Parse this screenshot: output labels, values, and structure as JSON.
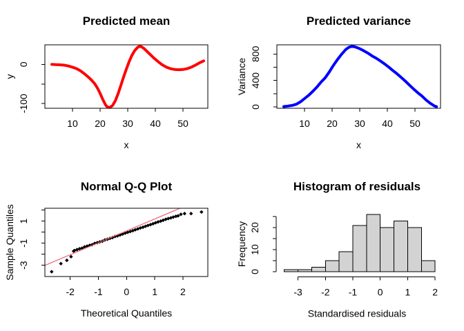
{
  "page": {
    "background": "#FFFFFF"
  },
  "chart_data": [
    {
      "id": "predicted-mean",
      "type": "line",
      "title": "Predicted mean",
      "xlabel": "x",
      "ylabel": "y",
      "xlim": [
        0,
        59
      ],
      "ylim": [
        -112,
        50
      ],
      "grid": false,
      "legend": null,
      "xticks": {
        "values": [
          10,
          20,
          30,
          40,
          50
        ],
        "labels": [
          "10",
          "20",
          "30",
          "40",
          "50"
        ]
      },
      "yticks": {
        "values": [
          0,
          -50,
          -100
        ],
        "labels": [
          "0",
          "",
          "-100"
        ]
      },
      "series": [
        {
          "name": "predicted-mean-curve",
          "color": "#FF0000",
          "width": 4,
          "x": [
            2.5,
            4,
            5.5,
            7,
            8.5,
            10,
            11.5,
            13,
            14.5,
            16,
            17,
            18,
            19,
            20,
            21,
            22,
            22.7,
            23.5,
            24.5,
            25.5,
            26.5,
            27.5,
            28.5,
            29.5,
            30.5,
            31.5,
            32.5,
            33.5,
            34.2,
            35,
            36,
            37,
            38,
            39.5,
            41,
            42.5,
            44,
            45.5,
            47,
            48.5,
            50,
            51.5,
            53,
            54.5,
            56,
            57.5
          ],
          "y": [
            0,
            -0.5,
            -1,
            -2,
            -4,
            -7,
            -11,
            -17,
            -25,
            -34,
            -41,
            -49,
            -60,
            -74,
            -90,
            -104,
            -109,
            -110,
            -105,
            -93,
            -75,
            -54,
            -32,
            -12,
            7,
            23,
            35,
            43,
            46,
            45,
            40,
            33,
            26,
            16,
            7,
            -1,
            -7,
            -11,
            -13,
            -13.5,
            -13,
            -11,
            -7,
            -2,
            4,
            9
          ]
        }
      ]
    },
    {
      "id": "predicted-variance",
      "type": "line",
      "title": "Predicted variance",
      "xlabel": "x",
      "ylabel": "Variance",
      "xlim": [
        0,
        59
      ],
      "ylim": [
        -21,
        938
      ],
      "grid": false,
      "legend": null,
      "xticks": {
        "values": [
          10,
          20,
          30,
          40,
          50
        ],
        "labels": [
          "10",
          "20",
          "30",
          "40",
          "50"
        ]
      },
      "yticks": {
        "values": [
          800,
          600,
          400,
          200,
          0
        ],
        "labels": [
          "800",
          "",
          "400",
          "",
          "0"
        ]
      },
      "series": [
        {
          "name": "predicted-variance-curve",
          "color": "#0000FF",
          "width": 4,
          "x": [
            2.5,
            4,
            5.5,
            7,
            8.5,
            10,
            11.5,
            13,
            14.5,
            16,
            17.5,
            19,
            20.5,
            22,
            23.5,
            25,
            26,
            27,
            28,
            29,
            30,
            31.5,
            33,
            34.5,
            36,
            37.5,
            39,
            40.5,
            42,
            43.5,
            45,
            46.5,
            48,
            49.5,
            51,
            52.5,
            54,
            55.5,
            57,
            57.8
          ],
          "y": [
            5,
            12,
            22,
            40,
            75,
            125,
            175,
            235,
            300,
            375,
            440,
            530,
            630,
            720,
            800,
            870,
            900,
            913,
            910,
            897,
            880,
            848,
            812,
            770,
            735,
            693,
            650,
            602,
            550,
            500,
            445,
            390,
            330,
            270,
            215,
            165,
            105,
            55,
            15,
            3
          ]
        }
      ]
    },
    {
      "id": "normal-qq-plot",
      "type": "scatter",
      "title": "Normal Q-Q Plot",
      "xlabel": "Theoretical Quantiles",
      "ylabel": "Sample Quantiles",
      "xlim": [
        -2.9,
        2.89
      ],
      "ylim": [
        -4.02,
        2.17
      ],
      "grid": false,
      "legend": null,
      "xticks": {
        "values": [
          -2,
          -1,
          0,
          1,
          2
        ],
        "labels": [
          "-2",
          "-1",
          "0",
          "1",
          "2"
        ]
      },
      "yticks": {
        "values": [
          2,
          1,
          0,
          -1,
          -2,
          -3
        ],
        "labels": [
          "",
          "1",
          "",
          "-1",
          "",
          "-3"
        ]
      },
      "point_color": "#000000",
      "point_size": 2.7,
      "points": [
        [
          -2.66,
          -3.58
        ],
        [
          -2.33,
          -2.85
        ],
        [
          -2.12,
          -2.55
        ],
        [
          -1.97,
          -2.22
        ],
        [
          -1.88,
          -1.72
        ],
        [
          -1.85,
          -1.66
        ],
        [
          -1.76,
          -1.58
        ],
        [
          -1.67,
          -1.5
        ],
        [
          -1.58,
          -1.45
        ],
        [
          -1.49,
          -1.33
        ],
        [
          -1.4,
          -1.27
        ],
        [
          -1.31,
          -1.19
        ],
        [
          -1.22,
          -1.13
        ],
        [
          -1.13,
          -1.01
        ],
        [
          -1.04,
          -0.95
        ],
        [
          -0.95,
          -0.88
        ],
        [
          -0.86,
          -0.82
        ],
        [
          -0.77,
          -0.7
        ],
        [
          -0.68,
          -0.64
        ],
        [
          -0.59,
          -0.56
        ],
        [
          -0.5,
          -0.49
        ],
        [
          -0.41,
          -0.39
        ],
        [
          -0.32,
          -0.33
        ],
        [
          -0.23,
          -0.25
        ],
        [
          -0.14,
          -0.17
        ],
        [
          -0.05,
          -0.09
        ],
        [
          0.04,
          -0.01
        ],
        [
          0.13,
          0.06
        ],
        [
          0.22,
          0.14
        ],
        [
          0.31,
          0.22
        ],
        [
          0.4,
          0.3
        ],
        [
          0.49,
          0.38
        ],
        [
          0.58,
          0.45
        ],
        [
          0.67,
          0.53
        ],
        [
          0.76,
          0.61
        ],
        [
          0.85,
          0.69
        ],
        [
          0.94,
          0.77
        ],
        [
          1.03,
          0.85
        ],
        [
          1.12,
          0.93
        ],
        [
          1.21,
          1.0
        ],
        [
          1.3,
          1.08
        ],
        [
          1.39,
          1.16
        ],
        [
          1.48,
          1.24
        ],
        [
          1.57,
          1.3
        ],
        [
          1.66,
          1.37
        ],
        [
          1.75,
          1.44
        ],
        [
          1.83,
          1.49
        ],
        [
          1.93,
          1.62
        ],
        [
          2.06,
          1.69
        ],
        [
          2.29,
          1.69
        ],
        [
          2.66,
          1.83
        ]
      ],
      "ref_line": {
        "x1": -2.9,
        "y1": -3.01,
        "x2": 1.9,
        "y2": 2.17,
        "color": "#F2606F",
        "width": 1.2
      }
    },
    {
      "id": "residual-histogram",
      "type": "histogram",
      "title": "Histogram of residuals",
      "xlabel": "Standardised residuals",
      "ylabel": "Frequency",
      "bin_start": -3.5,
      "bin_width": 0.5,
      "bin_edges": [
        -3.5,
        -3,
        -2.5,
        -2,
        -1.5,
        -1,
        -0.5,
        0,
        0.5,
        1,
        1.5,
        2
      ],
      "counts": [
        1,
        1,
        2,
        5,
        9,
        21,
        26,
        20,
        23,
        20,
        5
      ],
      "bar_fill": "#D3D3D3",
      "bar_stroke": "#000000",
      "xlim": [
        -3.8,
        2.2
      ],
      "ylim": [
        -1,
        27.6
      ],
      "grid": false,
      "legend": null,
      "xticks": {
        "values": [
          -3,
          -2,
          -1,
          0,
          1,
          2
        ],
        "labels": [
          "-3",
          "-2",
          "-1",
          "0",
          "1",
          "2"
        ]
      },
      "yticks": {
        "values": [
          0,
          5,
          10,
          15,
          20,
          25
        ],
        "labels": [
          "0",
          "",
          "10",
          "",
          "20",
          ""
        ]
      }
    }
  ]
}
